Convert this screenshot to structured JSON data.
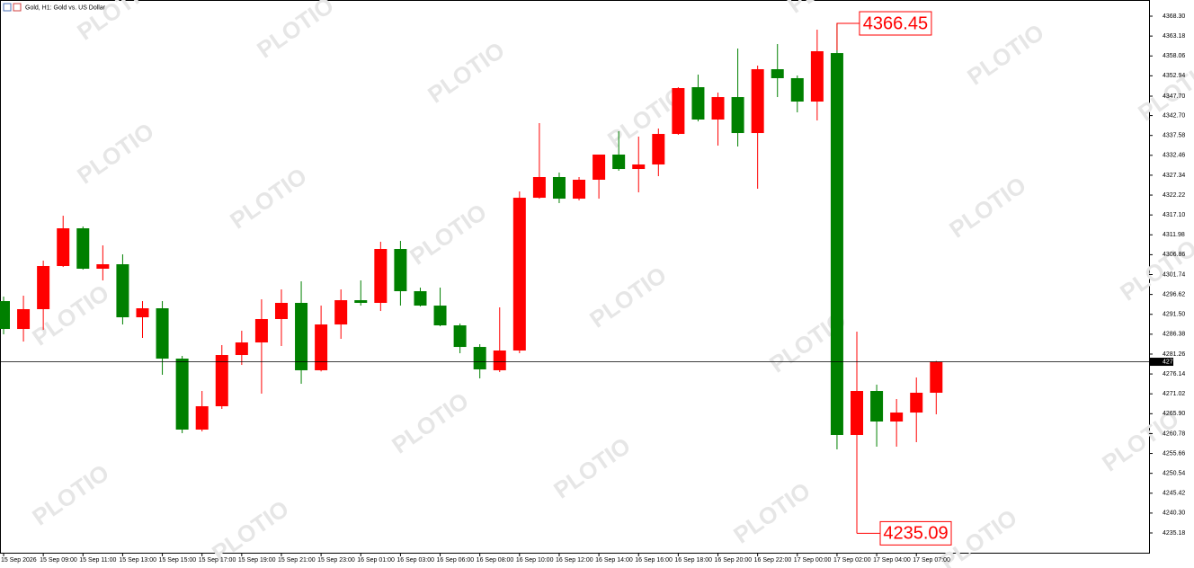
{
  "chart_data": {
    "type": "candlestick",
    "title": "Gold, H1:  Gold vs. US Dollar",
    "watermark": "PLOTIO",
    "up_color": "#ff0000",
    "down_color": "#008000",
    "categories": [
      "15 Sep 2026",
      null,
      "15 Sep 09:00",
      null,
      "15 Sep 11:00",
      null,
      "15 Sep 13:00",
      null,
      "15 Sep 15:00",
      null,
      "15 Sep 17:00",
      null,
      "15 Sep 19:00",
      null,
      "15 Sep 21:00",
      null,
      "15 Sep 23:00",
      null,
      "16 Sep 01:00",
      null,
      "16 Sep 03:00",
      null,
      "16 Sep 06:00",
      null,
      "16 Sep 08:00",
      null,
      "16 Sep 10:00",
      null,
      "16 Sep 12:00",
      null,
      "16 Sep 14:00",
      null,
      "16 Sep 16:00",
      null,
      "16 Sep 18:00",
      null,
      "16 Sep 20:00",
      null,
      "16 Sep 22:00",
      null,
      "17 Sep 00:00",
      null,
      "17 Sep 02:00",
      null,
      "17 Sep 04:00",
      null,
      "17 Sep 07:00",
      null
    ],
    "open": [
      4294.91,
      4287.73,
      4292.83,
      4303.94,
      4313.66,
      4303.25,
      4304.4,
      4290.74,
      4293.06,
      4280.09,
      4261.81,
      4267.82,
      4281.02,
      4284.26,
      4290.28,
      4294.45,
      4277.09,
      4288.89,
      4295.14,
      4294.45,
      4308.34,
      4297.46,
      4293.75,
      4288.66,
      4283.1,
      4277.09,
      4282.18,
      4321.53,
      4326.86,
      4321.3,
      4326.17,
      4332.65,
      4328.94,
      4330.1,
      4337.97,
      4350.01,
      4341.68,
      4347.46,
      4338.2,
      4354.64,
      4352.33,
      4346.31,
      4358.8,
      4260.42,
      4271.76,
      4263.89,
      4266.2,
      4271.3
    ],
    "high": [
      4296.07,
      4296.3,
      4305.33,
      4316.9,
      4314.13,
      4309.26,
      4306.95,
      4294.91,
      4294.91,
      4280.79,
      4271.76,
      4283.57,
      4287.27,
      4295.37,
      4297.92,
      4300.0,
      4293.75,
      4297.92,
      4300.24,
      4310.19,
      4310.42,
      4298.38,
      4298.38,
      4289.12,
      4283.8,
      4293.29,
      4323.16,
      4340.75,
      4328.02,
      4326.86,
      4332.65,
      4338.67,
      4337.28,
      4339.36,
      4350.01,
      4353.25,
      4348.62,
      4359.97,
      4355.57,
      4361.12,
      4353.02,
      4364.83,
      4366.45,
      4287.04,
      4273.38,
      4269.68,
      4275.23,
      4279.5
    ],
    "low": [
      4286.35,
      4284.49,
      4287.5,
      4303.7,
      4303.01,
      4300.24,
      4288.89,
      4285.42,
      4275.93,
      4260.88,
      4261.34,
      4267.13,
      4278.47,
      4271.07,
      4283.34,
      4273.61,
      4276.8,
      4285.19,
      4293.75,
      4292.36,
      4293.75,
      4293.52,
      4288.43,
      4281.48,
      4275.0,
      4276.62,
      4281.48,
      4321.3,
      4320.15,
      4320.85,
      4321.3,
      4328.48,
      4322.92,
      4327.09,
      4337.74,
      4341.2,
      4334.96,
      4334.73,
      4323.85,
      4347.46,
      4343.53,
      4341.44,
      4256.71,
      4235.09,
      4257.41,
      4257.41,
      4258.56,
      4265.74
    ],
    "close": [
      4287.73,
      4292.83,
      4303.94,
      4313.66,
      4303.25,
      4304.4,
      4290.74,
      4293.06,
      4280.09,
      4261.81,
      4267.82,
      4281.02,
      4284.26,
      4290.28,
      4294.45,
      4277.09,
      4288.89,
      4295.14,
      4294.45,
      4308.34,
      4297.46,
      4293.75,
      4288.66,
      4283.1,
      4277.32,
      4282.18,
      4321.53,
      4326.86,
      4321.3,
      4326.17,
      4332.65,
      4328.94,
      4330.1,
      4337.97,
      4349.78,
      4341.68,
      4347.46,
      4338.2,
      4354.64,
      4352.33,
      4346.31,
      4359.27,
      4260.42,
      4271.76,
      4263.89,
      4266.2,
      4271.3,
      4279.28
    ],
    "ylim": [
      4230.09,
      4372.47
    ],
    "yticks": [
      {
        "value": 4368.3,
        "label": "4368.30"
      },
      4363.18,
      4358.06,
      4352.94,
      {
        "value": 4347.7,
        "label": "4347.70"
      },
      {
        "value": 4342.7,
        "label": "4342.70"
      },
      4337.58,
      4332.46,
      4327.34,
      4322.22,
      {
        "value": 4317.1,
        "label": "4317.10"
      },
      4311.98,
      4306.86,
      4301.74,
      4296.62,
      {
        "value": 4291.5,
        "label": "4291.50"
      },
      4286.38,
      4281.26,
      4276.14,
      4271.02,
      {
        "value": 4265.9,
        "label": "4265.90"
      },
      4260.78,
      4255.66,
      4250.54,
      4245.42,
      {
        "value": 4240.3,
        "label": "4240.30"
      },
      4235.18
    ],
    "max_index": 42,
    "min_index": 43
  }
}
